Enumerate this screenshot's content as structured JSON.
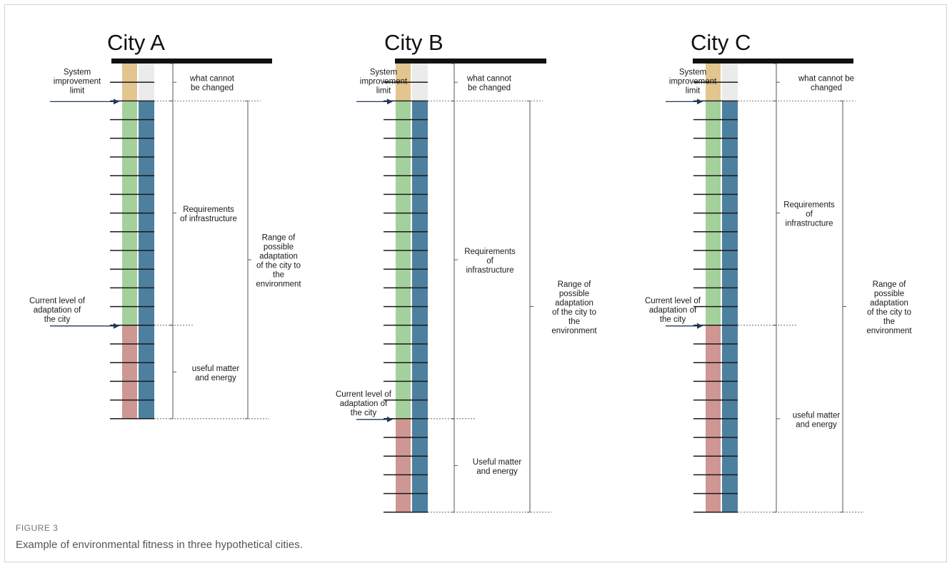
{
  "figure": {
    "label": "FIGURE 3",
    "caption": "Example of environmental fitness in three hypothetical cities."
  },
  "colors": {
    "unchangeable": "#e2c58f",
    "unchangeable_side": "#ebebeb",
    "infrastructure": "#a4d19b",
    "matter_energy": "#cf9793",
    "capacity": "#4d809f",
    "ink": "#1a1a1a",
    "arrow": "#1f3a5a"
  },
  "cities": [
    {
      "title": "City A",
      "segments": {
        "unchangeable_units": 2,
        "infrastructure_units": 12,
        "matter_energy_units": 5
      },
      "labels": {
        "system_limit": [
          "System",
          "improvement",
          "limit"
        ],
        "current_level": [
          "Current level of",
          "adaptation of",
          "the city"
        ],
        "unchangeable": [
          "what cannot",
          "be changed"
        ],
        "infrastructure": [
          "Requirements",
          "of infrastructure"
        ],
        "matter_energy": [
          "useful matter",
          "and energy"
        ],
        "range": [
          "Range of",
          "possible",
          "adaptation",
          "of the city to",
          "the",
          "environment"
        ]
      }
    },
    {
      "title": "City B",
      "segments": {
        "unchangeable_units": 2,
        "infrastructure_units": 17,
        "matter_energy_units": 5
      },
      "labels": {
        "system_limit": [
          "System",
          "improvement",
          "limit"
        ],
        "current_level": [
          "Current level of",
          "adaptation of",
          "the city"
        ],
        "unchangeable": [
          "what cannot",
          "be changed"
        ],
        "infrastructure": [
          "Requirements",
          "of",
          "infrastructure"
        ],
        "matter_energy": [
          "Useful matter",
          "and energy"
        ],
        "range": [
          "Range of",
          "possible",
          "adaptation",
          "of the city to",
          "the",
          "environment"
        ]
      }
    },
    {
      "title": "City C",
      "segments": {
        "unchangeable_units": 2,
        "infrastructure_units": 12,
        "matter_energy_units": 10
      },
      "labels": {
        "system_limit": [
          "System",
          "improvement",
          "limit"
        ],
        "current_level": [
          "Current level of",
          "adaptation of",
          "the city"
        ],
        "unchangeable": [
          "what cannot be",
          "changed"
        ],
        "infrastructure": [
          "Requirements",
          "of",
          "infrastructure"
        ],
        "matter_energy": [
          "useful matter",
          "and energy"
        ],
        "range": [
          "Range of",
          "possible",
          "adaptation",
          "of the city to",
          "the",
          "environment"
        ]
      }
    }
  ]
}
